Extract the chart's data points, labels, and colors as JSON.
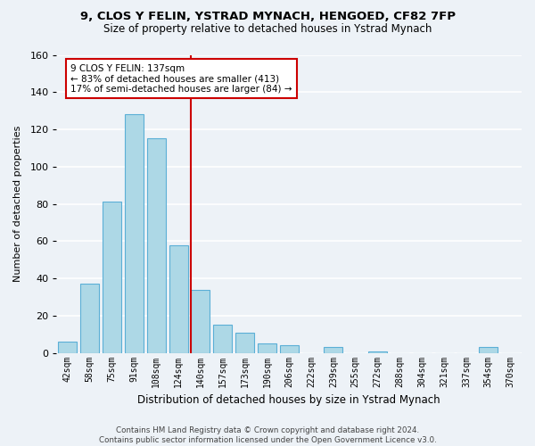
{
  "title": "9, CLOS Y FELIN, YSTRAD MYNACH, HENGOED, CF82 7FP",
  "subtitle": "Size of property relative to detached houses in Ystrad Mynach",
  "xlabel": "Distribution of detached houses by size in Ystrad Mynach",
  "ylabel": "Number of detached properties",
  "bar_labels": [
    "42sqm",
    "58sqm",
    "75sqm",
    "91sqm",
    "108sqm",
    "124sqm",
    "140sqm",
    "157sqm",
    "173sqm",
    "190sqm",
    "206sqm",
    "222sqm",
    "239sqm",
    "255sqm",
    "272sqm",
    "288sqm",
    "304sqm",
    "321sqm",
    "337sqm",
    "354sqm",
    "370sqm"
  ],
  "bar_values": [
    6,
    37,
    81,
    128,
    115,
    58,
    34,
    15,
    11,
    5,
    4,
    0,
    3,
    0,
    1,
    0,
    0,
    0,
    0,
    3,
    0
  ],
  "bar_color": "#add8e6",
  "bar_edge_color": "#5bafd6",
  "ylim": [
    0,
    160
  ],
  "yticks": [
    0,
    20,
    40,
    60,
    80,
    100,
    120,
    140,
    160
  ],
  "vline_x_index": 6,
  "vline_color": "#cc0000",
  "annotation_lines": [
    "9 CLOS Y FELIN: 137sqm",
    "← 83% of detached houses are smaller (413)",
    "17% of semi-detached houses are larger (84) →"
  ],
  "footer_line1": "Contains HM Land Registry data © Crown copyright and database right 2024.",
  "footer_line2": "Contains public sector information licensed under the Open Government Licence v3.0.",
  "background_color": "#edf2f7",
  "grid_color": "white"
}
